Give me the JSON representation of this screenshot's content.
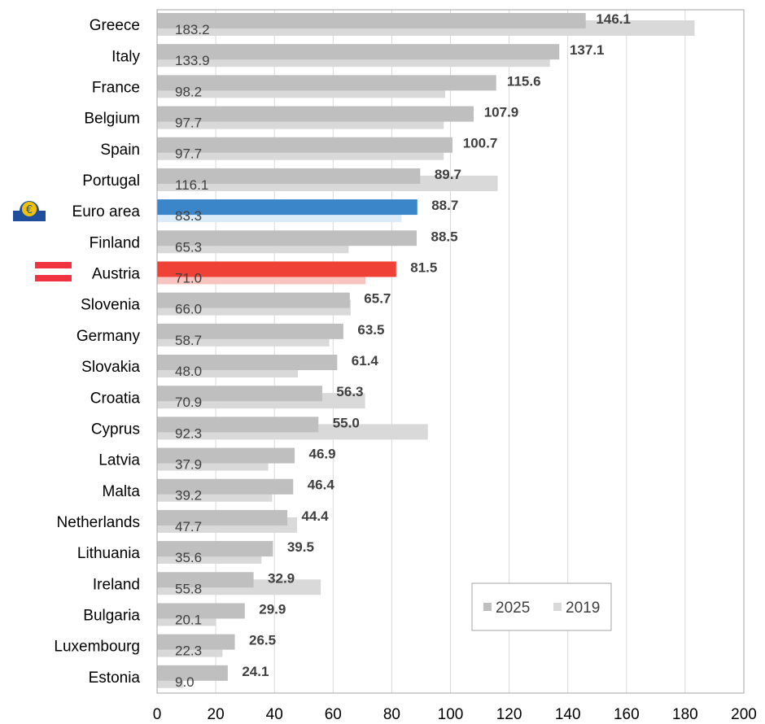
{
  "chart_data": {
    "type": "bar",
    "orientation": "horizontal",
    "categories": [
      "Greece",
      "Italy",
      "France",
      "Belgium",
      "Spain",
      "Portugal",
      "Euro area",
      "Finland",
      "Austria",
      "Slovenia",
      "Germany",
      "Slovakia",
      "Croatia",
      "Cyprus",
      "Latvia",
      "Malta",
      "Netherlands",
      "Lithuania",
      "Ireland",
      "Bulgaria",
      "Luxembourg",
      "Estonia"
    ],
    "series": [
      {
        "name": "2025",
        "values": [
          146.1,
          137.1,
          115.6,
          107.9,
          100.7,
          89.7,
          88.7,
          88.5,
          81.5,
          65.7,
          63.5,
          61.4,
          56.3,
          55.0,
          46.9,
          46.4,
          44.4,
          39.5,
          32.9,
          29.9,
          26.5,
          24.1
        ]
      },
      {
        "name": "2019",
        "values": [
          183.2,
          133.9,
          98.2,
          97.7,
          97.7,
          116.1,
          83.3,
          65.3,
          71.0,
          66.0,
          58.7,
          48.0,
          70.9,
          92.3,
          37.9,
          39.2,
          47.7,
          35.6,
          55.8,
          20.1,
          22.3,
          9.0
        ]
      }
    ],
    "labels_2025": [
      "146.1",
      "137.1",
      "115.6",
      "107.9",
      "100.7",
      "89.7",
      "88.7",
      "88.5",
      "81.5",
      "65.7",
      "63.5",
      "61.4",
      "56.3",
      "55.0",
      "46.9",
      "46.4",
      "44.4",
      "39.5",
      "32.9",
      "29.9",
      "26.5",
      "24.1"
    ],
    "labels_2019": [
      "183.2",
      "133.9",
      "98.2",
      "97.7",
      "97.7",
      "116.1",
      "83.3",
      "65.3",
      "71.0",
      "66.0",
      "58.7",
      "48.0",
      "70.9",
      "92.3",
      "37.9",
      "39.2",
      "47.7",
      "35.6",
      "55.8",
      "20.1",
      "22.3",
      "9.0"
    ],
    "xlim": [
      0,
      200
    ],
    "x_ticks": [
      "0",
      "20",
      "40",
      "60",
      "80",
      "100",
      "120",
      "140",
      "160",
      "180",
      "200"
    ],
    "grid": "vertical",
    "legend_placement": "bottom-right",
    "highlights": {
      "Euro area": {
        "color_2025": "#3a86c8",
        "color_2019": "#dcebf8",
        "icon": "ecb-euro-icon"
      },
      "Austria": {
        "color_2025": "#ef4136",
        "color_2019": "#f7c4c0",
        "icon": "austria-flag-icon"
      }
    },
    "colors": {
      "bar_2025": "#bfbfbf",
      "bar_2019": "#d9d9d9",
      "grid": "#d9d9d9",
      "axis": "#a6a6a6"
    }
  }
}
